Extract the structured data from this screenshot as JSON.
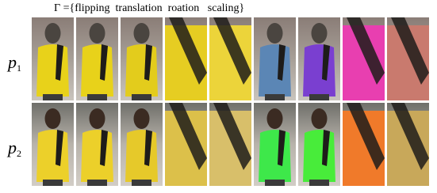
{
  "header": {
    "title": "Γ ={flipping  translation  roation   scaling}"
  },
  "rows": [
    {
      "label": "p",
      "subscript": "1"
    },
    {
      "label": "p",
      "subscript": "2"
    }
  ]
}
